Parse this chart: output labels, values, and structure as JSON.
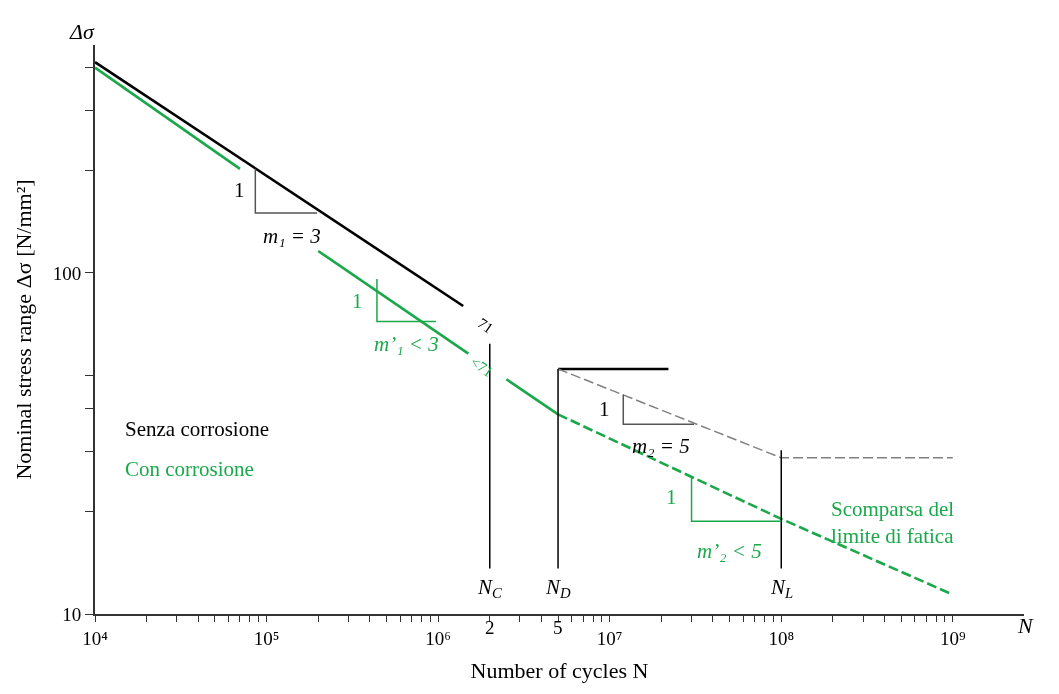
{
  "chart_data": {
    "type": "line",
    "xlabel": "Number of cycles N",
    "ylabel": "Nominal stress range Δσ [N/mm²]",
    "log": "xy",
    "marker": "none",
    "xlim": [
      10000,
      2600000000
    ],
    "ylim": [
      10,
      466
    ],
    "xticks": [
      {
        "value": 10000,
        "label": "10⁴"
      },
      {
        "value": 20000,
        "label": null
      },
      {
        "value": 30000,
        "label": null
      },
      {
        "value": 40000,
        "label": null
      },
      {
        "value": 50000,
        "label": null
      },
      {
        "value": 60000,
        "label": null
      },
      {
        "value": 70000,
        "label": null
      },
      {
        "value": 80000,
        "label": null
      },
      {
        "value": 90000,
        "label": null
      },
      {
        "value": 100000,
        "label": "10⁵"
      },
      {
        "value": 200000,
        "label": null
      },
      {
        "value": 300000,
        "label": null
      },
      {
        "value": 400000,
        "label": null
      },
      {
        "value": 500000,
        "label": null
      },
      {
        "value": 600000,
        "label": null
      },
      {
        "value": 700000,
        "label": null
      },
      {
        "value": 800000,
        "label": null
      },
      {
        "value": 900000,
        "label": null
      },
      {
        "value": 1000000,
        "label": "10⁶"
      },
      {
        "value": 2000000,
        "label": null
      },
      {
        "value": 3000000,
        "label": null
      },
      {
        "value": 4000000,
        "label": null
      },
      {
        "value": 5000000,
        "label": null
      },
      {
        "value": 6000000,
        "label": null
      },
      {
        "value": 7000000,
        "label": null
      },
      {
        "value": 8000000,
        "label": null
      },
      {
        "value": 9000000,
        "label": null
      },
      {
        "value": 10000000,
        "label": "10⁷"
      },
      {
        "value": 20000000,
        "label": null
      },
      {
        "value": 30000000,
        "label": null
      },
      {
        "value": 40000000,
        "label": null
      },
      {
        "value": 50000000,
        "label": null
      },
      {
        "value": 60000000,
        "label": null
      },
      {
        "value": 70000000,
        "label": null
      },
      {
        "value": 80000000,
        "label": null
      },
      {
        "value": 90000000,
        "label": null
      },
      {
        "value": 100000000,
        "label": "10⁸"
      },
      {
        "value": 200000000,
        "label": null
      },
      {
        "value": 300000000,
        "label": null
      },
      {
        "value": 400000000,
        "label": null
      },
      {
        "value": 500000000,
        "label": null
      },
      {
        "value": 600000000,
        "label": null
      },
      {
        "value": 700000000,
        "label": null
      },
      {
        "value": 800000000,
        "label": null
      },
      {
        "value": 900000000,
        "label": null
      },
      {
        "value": 1000000000,
        "label": "10⁹"
      }
    ],
    "yticks": [
      10,
      {
        "value": 20,
        "label": null
      },
      {
        "value": 30,
        "label": null
      },
      {
        "value": 40,
        "label": null
      },
      {
        "value": 50,
        "label": null
      },
      100,
      {
        "value": 200,
        "label": null
      },
      {
        "value": 300,
        "label": null
      },
      {
        "value": 400,
        "label": null
      }
    ],
    "series": [
      {
        "color": "#000000",
        "line_style": "solid",
        "x": [
          10000,
          1400000,
          2500000,
          5000000,
          22000000
        ],
        "values": [
          415,
          80,
          null,
          52.3,
          52.3
        ]
      },
      {
        "color": "#808080",
        "line_style": "dashed",
        "x": [
          5000000,
          100000000,
          1000000000
        ],
        "values": [
          52.3,
          28.7,
          28.7
        ]
      },
      {
        "color": "#1aa84a",
        "line_style": "solid",
        "x": [
          10000,
          70000,
          130000,
          200000,
          1500000,
          2000000,
          2500000,
          5000000
        ],
        "values": [
          400,
          202,
          null,
          116,
          58,
          null,
          48.8,
          38.5
        ]
      },
      {
        "color": "#1aa84a",
        "line_style": "dashed",
        "x": [
          5000000,
          100000000,
          1000000000
        ],
        "values": [
          38.5,
          19,
          11.4
        ]
      },
      {
        "color": "#000000",
        "line_style": "solid",
        "x": [
          2000000,
          2000000
        ],
        "values": [
          13.6,
          62
        ]
      },
      {
        "color": "#000000",
        "line_style": "solid",
        "x": [
          5000000,
          5000000
        ],
        "values": [
          13.6,
          52.3
        ]
      },
      {
        "color": "#000000",
        "line_style": "solid",
        "x": [
          100000000,
          100000000
        ],
        "values": [
          13.6,
          30.2
        ]
      },
      {
        "color": "#555555",
        "line_style": "solid",
        "x": [
          86000,
          86000,
          197000
        ],
        "values": [
          202,
          150,
          150
        ]
      },
      {
        "color": "#1aa84a",
        "line_style": "solid",
        "x": [
          440000,
          440000,
          970000
        ],
        "values": [
          96,
          72,
          72
        ]
      },
      {
        "color": "#555555",
        "line_style": "solid",
        "x": [
          12000000,
          12000000,
          31000000
        ],
        "values": [
          44,
          36,
          36
        ]
      },
      {
        "color": "#1aa84a",
        "line_style": "solid",
        "x": [
          30000000,
          30000000,
          100000000
        ],
        "values": [
          25.4,
          18.7,
          18.7
        ]
      }
    ],
    "annotations": [
      "1",
      "m₁ = 3",
      "1",
      "m’₁ < 3",
      "71",
      "<71",
      "1",
      "m₂ = 5",
      "1",
      "m’₂ < 5",
      "N$_{C}$",
      "N$_{D}$",
      "N$_{L}$",
      "Scomparsa del\nlimite di fatica",
      "Senza corrosione",
      "Con corrosione",
      "Δσ",
      "N",
      "2",
      "5"
    ]
  }
}
